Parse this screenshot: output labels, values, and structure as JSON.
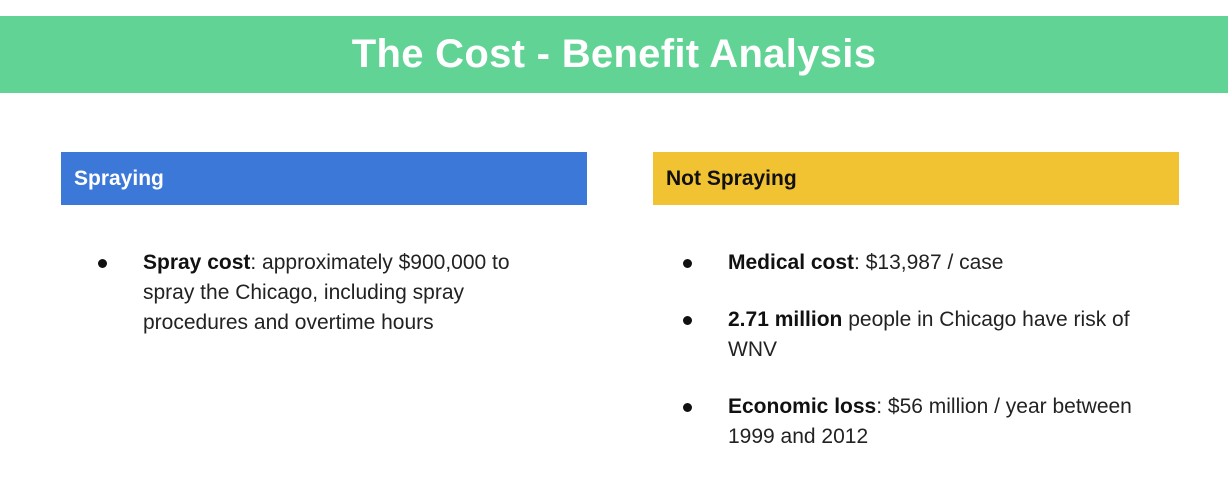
{
  "title": "The Cost - Benefit Analysis",
  "colors": {
    "title_bar": "#61d395",
    "spraying_header": "#3c78d8",
    "not_spraying_header": "#f1c232"
  },
  "spraying": {
    "header": "Spraying",
    "items": [
      {
        "strong": "Spray cost",
        "text": ": approximately $900,000 to spray the Chicago, including spray procedures and overtime hours"
      }
    ]
  },
  "not_spraying": {
    "header": "Not Spraying",
    "items": [
      {
        "strong": "Medical cost",
        "text": ": $13,987 / case"
      },
      {
        "strong": "2.71 million",
        "text": " people in Chicago have risk of WNV"
      },
      {
        "strong": "Economic loss",
        "text": ": $56 million / year between 1999 and 2012"
      }
    ]
  }
}
